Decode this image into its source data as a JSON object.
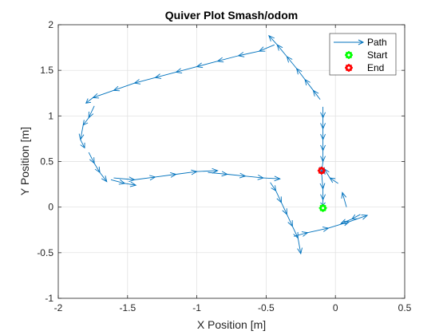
{
  "chart_data": {
    "type": "quiver",
    "title": "Quiver Plot Smash/odom",
    "xlabel": "X Position [m]",
    "ylabel": "Y Position [m]",
    "xlim": [
      -2,
      0.5
    ],
    "ylim": [
      -1,
      2
    ],
    "xticks": [
      -2,
      -1.5,
      -1,
      -0.5,
      0,
      0.5
    ],
    "yticks": [
      -1,
      -0.5,
      0,
      0.5,
      1,
      1.5,
      2
    ],
    "xtick_labels": [
      "-2",
      "-1.5",
      "-1",
      "-0.5",
      "0",
      "0.5"
    ],
    "ytick_labels": [
      "-1",
      "-0.5",
      "0",
      "0.5",
      "1",
      "1.5",
      "2"
    ],
    "grid": true,
    "legend": {
      "location": "top-right",
      "entries": [
        {
          "label": "Path",
          "marker": "arrow",
          "color": "#0072BD"
        },
        {
          "label": "Start",
          "marker": "star-circle",
          "color": "#00FF00"
        },
        {
          "label": "End",
          "marker": "star-circle",
          "color": "#FF0000"
        }
      ]
    },
    "colors": {
      "path": "#0072BD",
      "start": "#00FF00",
      "end": "#FF0000"
    },
    "series": [
      {
        "name": "Path",
        "points": [
          [
            0.08,
            0.0
          ],
          [
            0.05,
            0.16
          ],
          [
            0.02,
            0.26
          ],
          [
            -0.04,
            0.32
          ],
          [
            -0.08,
            0.42
          ],
          [
            -0.1,
            0.38
          ],
          [
            -0.09,
            0.2
          ],
          [
            -0.09,
            0.08
          ],
          [
            -0.09,
            0.02
          ],
          [
            -0.1,
            0.38
          ],
          [
            -0.09,
            0.5
          ],
          [
            -0.09,
            0.62
          ],
          [
            -0.09,
            0.74
          ],
          [
            -0.09,
            0.86
          ],
          [
            -0.09,
            0.98
          ],
          [
            -0.09,
            1.1
          ],
          [
            -0.11,
            1.18
          ],
          [
            -0.16,
            1.28
          ],
          [
            -0.22,
            1.4
          ],
          [
            -0.28,
            1.52
          ],
          [
            -0.35,
            1.65
          ],
          [
            -0.42,
            1.78
          ],
          [
            -0.48,
            1.88
          ],
          [
            -0.44,
            1.78
          ],
          [
            -0.55,
            1.71
          ],
          [
            -0.7,
            1.66
          ],
          [
            -0.85,
            1.6
          ],
          [
            -1.0,
            1.54
          ],
          [
            -1.15,
            1.48
          ],
          [
            -1.3,
            1.42
          ],
          [
            -1.45,
            1.36
          ],
          [
            -1.6,
            1.28
          ],
          [
            -1.75,
            1.2
          ],
          [
            -1.8,
            1.14
          ],
          [
            -1.74,
            1.11
          ],
          [
            -1.78,
            0.98
          ],
          [
            -1.82,
            0.9
          ],
          [
            -1.84,
            0.74
          ],
          [
            -1.81,
            0.65
          ],
          [
            -1.78,
            0.6
          ],
          [
            -1.74,
            0.48
          ],
          [
            -1.7,
            0.38
          ],
          [
            -1.65,
            0.28
          ],
          [
            -1.62,
            0.3
          ],
          [
            -1.52,
            0.26
          ],
          [
            -1.44,
            0.24
          ],
          [
            -1.6,
            0.32
          ],
          [
            -1.45,
            0.3
          ],
          [
            -1.3,
            0.33
          ],
          [
            -1.15,
            0.36
          ],
          [
            -1.0,
            0.39
          ],
          [
            -0.85,
            0.4
          ],
          [
            -0.92,
            0.38
          ],
          [
            -0.78,
            0.36
          ],
          [
            -0.65,
            0.34
          ],
          [
            -0.52,
            0.32
          ],
          [
            -0.4,
            0.31
          ],
          [
            -0.47,
            0.27
          ],
          [
            -0.43,
            0.18
          ],
          [
            -0.39,
            0.05
          ],
          [
            -0.35,
            -0.08
          ],
          [
            -0.31,
            -0.21
          ],
          [
            -0.27,
            -0.34
          ],
          [
            -0.25,
            -0.51
          ],
          [
            -0.3,
            -0.32
          ],
          [
            -0.2,
            -0.28
          ],
          [
            -0.05,
            -0.23
          ],
          [
            0.1,
            -0.16
          ],
          [
            0.23,
            -0.09
          ],
          [
            0.18,
            -0.08
          ],
          [
            0.12,
            -0.13
          ],
          [
            0.04,
            -0.18
          ]
        ],
        "arrow_indices": [
          [
            0,
            1
          ],
          [
            2,
            3
          ],
          [
            3,
            4
          ],
          [
            5,
            6
          ],
          [
            6,
            7
          ],
          [
            7,
            8
          ],
          [
            10,
            9
          ],
          [
            11,
            10
          ],
          [
            12,
            11
          ],
          [
            13,
            12
          ],
          [
            14,
            13
          ],
          [
            15,
            14
          ],
          [
            16,
            17
          ],
          [
            17,
            18
          ],
          [
            18,
            19
          ],
          [
            19,
            20
          ],
          [
            20,
            21
          ],
          [
            21,
            22
          ],
          [
            23,
            24
          ],
          [
            24,
            25
          ],
          [
            25,
            26
          ],
          [
            26,
            27
          ],
          [
            27,
            28
          ],
          [
            28,
            29
          ],
          [
            29,
            30
          ],
          [
            30,
            31
          ],
          [
            31,
            32
          ],
          [
            32,
            33
          ],
          [
            34,
            35
          ],
          [
            35,
            36
          ],
          [
            36,
            37
          ],
          [
            37,
            38
          ],
          [
            39,
            40
          ],
          [
            40,
            41
          ],
          [
            41,
            42
          ],
          [
            43,
            44
          ],
          [
            44,
            45
          ],
          [
            46,
            47
          ],
          [
            47,
            48
          ],
          [
            48,
            49
          ],
          [
            49,
            50
          ],
          [
            50,
            51
          ],
          [
            52,
            53
          ],
          [
            53,
            54
          ],
          [
            54,
            55
          ],
          [
            55,
            56
          ],
          [
            57,
            58
          ],
          [
            58,
            59
          ],
          [
            59,
            60
          ],
          [
            60,
            61
          ],
          [
            61,
            62
          ],
          [
            62,
            63
          ],
          [
            64,
            65
          ],
          [
            65,
            66
          ],
          [
            66,
            67
          ],
          [
            67,
            68
          ],
          [
            69,
            70
          ],
          [
            70,
            71
          ]
        ]
      }
    ],
    "start": {
      "x": -0.09,
      "y": -0.01
    },
    "end": {
      "x": -0.1,
      "y": 0.4
    }
  }
}
